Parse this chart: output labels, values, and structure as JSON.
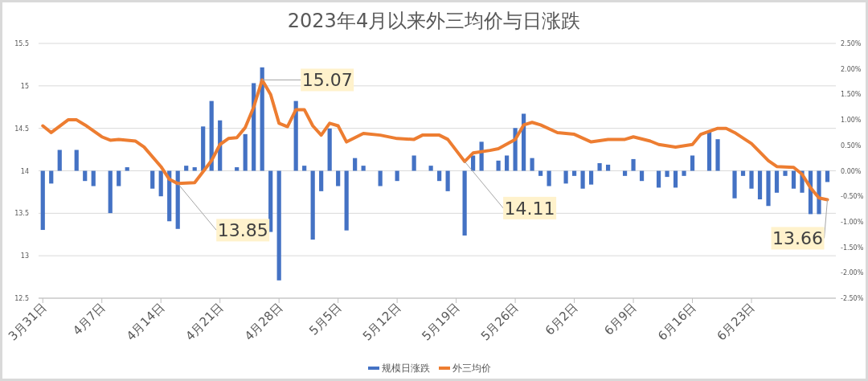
{
  "chart_data": {
    "type": "bar",
    "title": "2023年4月以来外三均价与日涨跌",
    "xlim": [
      "2023-03-30T12:00",
      "2023-07-03"
    ],
    "xticks": [
      {
        "value": "2023-03-31",
        "label": "3月31日"
      },
      {
        "value": "2023-04-07",
        "label": "4月7日"
      },
      {
        "value": "2023-04-14",
        "label": "4月14日"
      },
      {
        "value": "2023-04-21",
        "label": "4月21日"
      },
      {
        "value": "2023-04-28",
        "label": "4月28日"
      },
      {
        "value": "2023-05-05",
        "label": "5月5日"
      },
      {
        "value": "2023-05-12",
        "label": "5月12日"
      },
      {
        "value": "2023-05-19",
        "label": "5月19日"
      },
      {
        "value": "2023-05-26",
        "label": "5月26日"
      },
      {
        "value": "2023-06-02",
        "label": "6月2日"
      },
      {
        "value": "2023-06-09",
        "label": "6月9日"
      },
      {
        "value": "2023-06-16",
        "label": "6月16日"
      },
      {
        "value": "2023-06-23",
        "label": "6月23日"
      }
    ],
    "ylim": [
      12.5,
      15.5
    ],
    "yticks": [
      12.5,
      13,
      13.5,
      14,
      14.5,
      15,
      15.5
    ],
    "y2lim": [
      -2.5,
      2.5
    ],
    "y2ticks": [
      {
        "value": -2.5,
        "label": "-2.50%"
      },
      {
        "value": -2,
        "label": "-2.00%"
      },
      {
        "value": -1.5,
        "label": "-1.50%"
      },
      {
        "value": -1,
        "label": "-1.00%"
      },
      {
        "value": -0.5,
        "label": "-0.50%"
      },
      {
        "value": 0,
        "label": "0.00%"
      },
      {
        "value": 0.5,
        "label": "0.50%"
      },
      {
        "value": 1,
        "label": "1.00%"
      },
      {
        "value": 1.5,
        "label": "1.50%"
      },
      {
        "value": 2,
        "label": "2.00%"
      },
      {
        "value": 2.5,
        "label": "2.50%"
      }
    ],
    "grid": "y",
    "legend": "bottom",
    "series": [
      {
        "name": "规模日涨跌",
        "type": "bar",
        "axis": "y2",
        "color": "#4472c4",
        "x": [
          "2023-03-31",
          "2023-04-01",
          "2023-04-02",
          "2023-04-04",
          "2023-04-05",
          "2023-04-06",
          "2023-04-08",
          "2023-04-09",
          "2023-04-10",
          "2023-04-13",
          "2023-04-14",
          "2023-04-15",
          "2023-04-16",
          "2023-04-17",
          "2023-04-18",
          "2023-04-19",
          "2023-04-20",
          "2023-04-21",
          "2023-04-23",
          "2023-04-24",
          "2023-04-25",
          "2023-04-26",
          "2023-04-27",
          "2023-04-28",
          "2023-04-30",
          "2023-05-01",
          "2023-05-02",
          "2023-05-03",
          "2023-05-04",
          "2023-05-05",
          "2023-05-06",
          "2023-05-07",
          "2023-05-08",
          "2023-05-10",
          "2023-05-12",
          "2023-05-14",
          "2023-05-16",
          "2023-05-17",
          "2023-05-18",
          "2023-05-20",
          "2023-05-21",
          "2023-05-22",
          "2023-05-24",
          "2023-05-25",
          "2023-05-26",
          "2023-05-27",
          "2023-05-28",
          "2023-05-29",
          "2023-05-30",
          "2023-06-01",
          "2023-06-02",
          "2023-06-03",
          "2023-06-04",
          "2023-06-05",
          "2023-06-06",
          "2023-06-08",
          "2023-06-09",
          "2023-06-10",
          "2023-06-12",
          "2023-06-13",
          "2023-06-14",
          "2023-06-15",
          "2023-06-16",
          "2023-06-18",
          "2023-06-19",
          "2023-06-21",
          "2023-06-22",
          "2023-06-23",
          "2023-06-24",
          "2023-06-25",
          "2023-06-26",
          "2023-06-27",
          "2023-06-28",
          "2023-06-29",
          "2023-06-30",
          "2023-07-01",
          "2023-07-02"
        ],
        "values": [
          -1.16,
          -0.25,
          0.41,
          0.41,
          -0.2,
          -0.3,
          -0.83,
          -0.3,
          0.07,
          -0.35,
          -0.5,
          -0.99,
          -1.14,
          0.1,
          0.07,
          0.87,
          1.37,
          0.99,
          0.07,
          0.72,
          1.72,
          2.03,
          -1.2,
          -2.15,
          1.37,
          0.1,
          -1.35,
          -0.4,
          0.83,
          -0.3,
          -1.17,
          0.25,
          0.1,
          -0.3,
          -0.2,
          0.3,
          0.1,
          -0.2,
          -0.4,
          -1.27,
          0.3,
          0.57,
          0.2,
          0.3,
          0.84,
          1.12,
          0.25,
          -0.1,
          -0.3,
          -0.25,
          -0.1,
          -0.35,
          -0.27,
          0.15,
          0.12,
          -0.1,
          0.23,
          -0.2,
          -0.33,
          -0.12,
          -0.33,
          -0.1,
          0.3,
          0.77,
          0.62,
          -0.54,
          -0.1,
          -0.35,
          -0.56,
          -0.69,
          -0.43,
          -0.1,
          -0.35,
          -0.43,
          -0.85,
          -0.85,
          -0.22
        ]
      },
      {
        "name": "外三均价",
        "type": "line",
        "color": "#ed7d31",
        "x": [
          "2023-03-31",
          "2023-04-01",
          "2023-04-03",
          "2023-04-04",
          "2023-04-05",
          "2023-04-07",
          "2023-04-08",
          "2023-04-09",
          "2023-04-11",
          "2023-04-12",
          "2023-04-14",
          "2023-04-15",
          "2023-04-16",
          "2023-04-18",
          "2023-04-20",
          "2023-04-21",
          "2023-04-22",
          "2023-04-23",
          "2023-04-24",
          "2023-04-25",
          "2023-04-26",
          "2023-04-27",
          "2023-04-28",
          "2023-04-29",
          "2023-04-30",
          "2023-05-01",
          "2023-05-02",
          "2023-05-03",
          "2023-05-04",
          "2023-05-05",
          "2023-05-06",
          "2023-05-08",
          "2023-05-10",
          "2023-05-12",
          "2023-05-14",
          "2023-05-15",
          "2023-05-17",
          "2023-05-18",
          "2023-05-20",
          "2023-05-21",
          "2023-05-23",
          "2023-05-24",
          "2023-05-26",
          "2023-05-27",
          "2023-05-28",
          "2023-05-29",
          "2023-05-31",
          "2023-06-02",
          "2023-06-04",
          "2023-06-06",
          "2023-06-08",
          "2023-06-09",
          "2023-06-11",
          "2023-06-12",
          "2023-06-14",
          "2023-06-16",
          "2023-06-17",
          "2023-06-19",
          "2023-06-20",
          "2023-06-21",
          "2023-06-23",
          "2023-06-25",
          "2023-06-26",
          "2023-06-28",
          "2023-06-29",
          "2023-06-30",
          "2023-07-01",
          "2023-07-02"
        ],
        "values": [
          14.53,
          14.45,
          14.6,
          14.6,
          14.54,
          14.4,
          14.36,
          14.37,
          14.35,
          14.28,
          14.05,
          13.9,
          13.85,
          13.86,
          14.12,
          14.31,
          14.38,
          14.39,
          14.51,
          14.75,
          15.07,
          14.9,
          14.56,
          14.52,
          14.72,
          14.72,
          14.53,
          14.42,
          14.56,
          14.53,
          14.34,
          14.44,
          14.42,
          14.38,
          14.37,
          14.42,
          14.42,
          14.37,
          14.11,
          14.21,
          14.24,
          14.26,
          14.37,
          14.54,
          14.57,
          14.54,
          14.45,
          14.43,
          14.34,
          14.37,
          14.37,
          14.4,
          14.35,
          14.31,
          14.28,
          14.31,
          14.43,
          14.5,
          14.5,
          14.45,
          14.32,
          14.12,
          14.05,
          14.04,
          13.96,
          13.8,
          13.68,
          13.66
        ]
      }
    ],
    "annotations": [
      {
        "text": "15.07",
        "x": "2023-04-26",
        "y": 15.07
      },
      {
        "text": "13.85",
        "x": "2023-04-16",
        "y": 13.85
      },
      {
        "text": "14.11",
        "x": "2023-05-20",
        "y": 14.11
      },
      {
        "text": "13.66",
        "x": "2023-07-02",
        "y": 13.66
      }
    ]
  }
}
